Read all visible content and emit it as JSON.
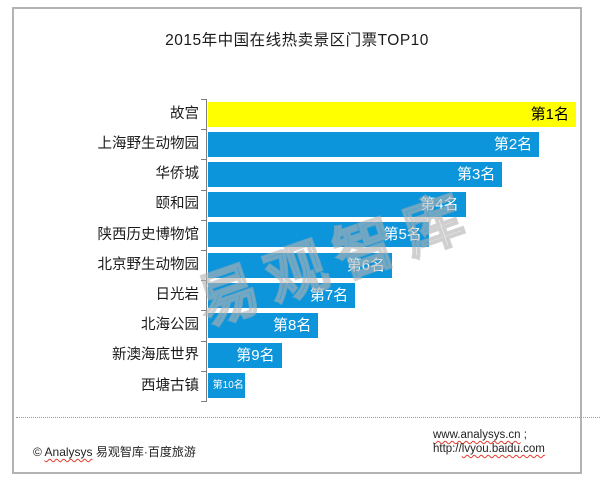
{
  "title": "2015年中国在线热卖景区门票TOP10",
  "chart_data": {
    "type": "bar",
    "orientation": "horizontal",
    "title": "2015年中国在线热卖景区门票TOP10",
    "categories": [
      "故宫",
      "上海野生动物园",
      "华侨城",
      "颐和园",
      "陕西历史博物馆",
      "北京野生动物园",
      "日光岩",
      "北海公园",
      "新澳海底世界",
      "西塘古镇"
    ],
    "values": [
      10,
      9,
      8,
      7,
      6,
      5,
      4,
      3,
      2,
      1
    ],
    "bar_labels": [
      "第1名",
      "第2名",
      "第3名",
      "第4名",
      "第5名",
      "第6名",
      "第7名",
      "第8名",
      "第9名",
      "第10名"
    ],
    "highlight_index": 0,
    "xlabel": "",
    "ylabel": "",
    "xlim": [
      0,
      10.2
    ],
    "grid": false,
    "legend": false,
    "value_axis_visible": false,
    "colors": {
      "default_bar": "#0D95DB",
      "highlight_bar": "#FFFF00",
      "label_on_default": "#FFFFFF",
      "label_on_highlight": "#000000",
      "axis": "#7f7f7f"
    }
  },
  "watermark": "易观智库",
  "footer": {
    "copyright": {
      "prefix": "© ",
      "brand": "Analysys",
      "suffix": " 易观智库·百度旅游"
    },
    "links": {
      "line1_wavy": "www.analysys.cn",
      "line1_tail": " ;",
      "line2_head": "http://",
      "line2_wavy": "lvyou.baidu.com"
    }
  }
}
